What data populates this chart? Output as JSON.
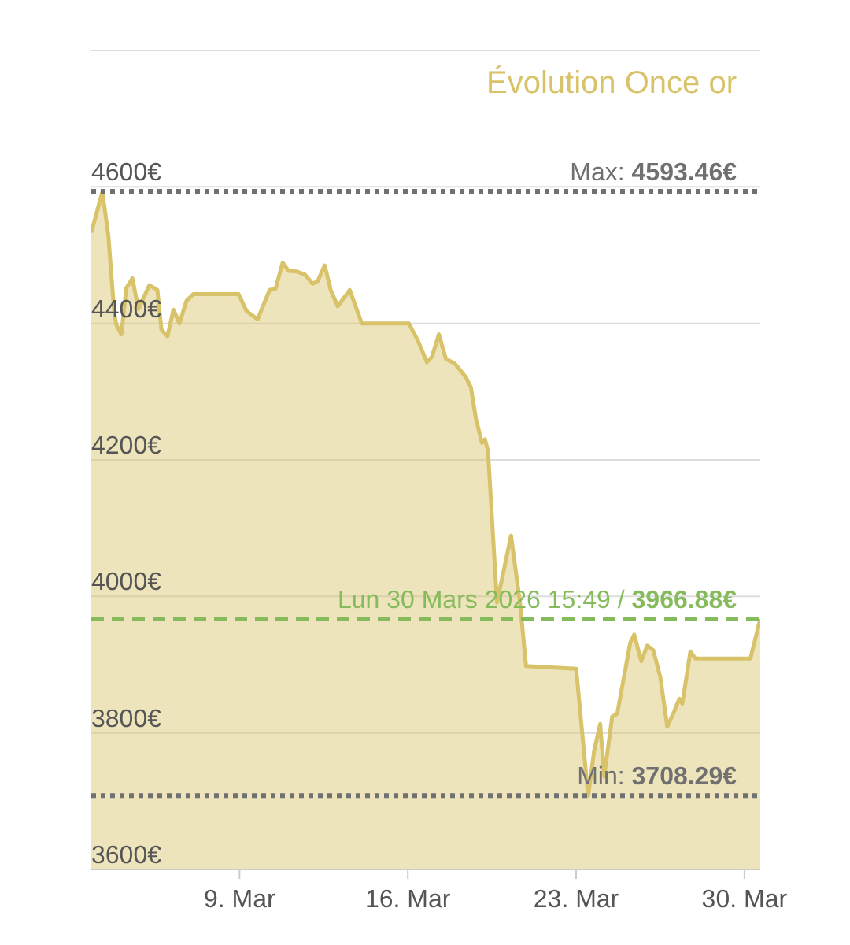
{
  "chart_data": {
    "type": "area",
    "title": "Évolution Once or",
    "color": "#d8c36a",
    "marker": "none",
    "line_style": "solid",
    "grid": "y",
    "x": [
      "2026-03-02T20:00",
      "2026-03-03T01:00",
      "2026-03-03T07:00",
      "2026-03-03T13:00",
      "2026-03-03T19:00",
      "2026-03-03T21:00",
      "2026-03-04T02:00",
      "2026-03-04T07:00",
      "2026-03-04T13:00",
      "2026-03-04T19:00",
      "2026-03-05T06:00",
      "2026-03-05T14:00",
      "2026-03-05T18:00",
      "2026-03-06T00:00",
      "2026-03-06T06:00",
      "2026-03-06T12:00",
      "2026-03-06T19:00",
      "2026-03-07T02:00",
      "2026-03-08T23:00",
      "2026-03-09T07:00",
      "2026-03-09T18:00",
      "2026-03-10T06:00",
      "2026-03-10T12:00",
      "2026-03-10T19:00",
      "2026-03-11T01:00",
      "2026-03-11T09:00",
      "2026-03-11T17:00",
      "2026-03-12T01:00",
      "2026-03-12T06:00",
      "2026-03-12T13:00",
      "2026-03-12T19:00",
      "2026-03-13T02:00",
      "2026-03-13T14:00",
      "2026-03-14T02:00",
      "2026-03-16T01:00",
      "2026-03-16T10:00",
      "2026-03-16T19:00",
      "2026-03-17T00:00",
      "2026-03-17T07:00",
      "2026-03-17T14:00",
      "2026-03-17T23:00",
      "2026-03-18T10:00",
      "2026-03-18T15:00",
      "2026-03-18T20:00",
      "2026-03-19T02:00",
      "2026-03-19T05:00",
      "2026-03-19T08:00",
      "2026-03-19T17:00",
      "2026-03-20T07:00",
      "2026-03-20T16:00",
      "2026-03-20T22:00",
      "2026-03-23T00:00",
      "2026-03-23T12:00",
      "2026-03-23T18:00",
      "2026-03-24T00:00",
      "2026-03-24T04:00",
      "2026-03-24T12:00",
      "2026-03-24T17:00",
      "2026-03-25T06:00",
      "2026-03-25T10:00",
      "2026-03-25T17:00",
      "2026-03-25T23:00",
      "2026-03-26T05:00",
      "2026-03-26T12:00",
      "2026-03-26T19:00",
      "2026-03-27T02:00",
      "2026-03-27T07:00",
      "2026-03-27T10:00",
      "2026-03-27T15:00",
      "2026-03-27T18:00",
      "2026-03-27T23:00",
      "2026-03-30T06:00",
      "2026-03-30T15:49"
    ],
    "values": [
      4533,
      4560,
      4593,
      4529,
      4414,
      4398,
      4384,
      4452,
      4466,
      4421,
      4456,
      4449,
      4391,
      4381,
      4420,
      4400,
      4433,
      4443,
      4443,
      4418,
      4406,
      4449,
      4451,
      4489,
      4477,
      4476,
      4472,
      4458,
      4462,
      4485,
      4449,
      4425,
      4449,
      4400,
      4400,
      4375,
      4343,
      4351,
      4384,
      4348,
      4341,
      4321,
      4306,
      4260,
      4225,
      4230,
      4213,
      3991,
      4089,
      3990,
      3898,
      3894,
      3708,
      3774,
      3813,
      3736,
      3824,
      3828,
      3932,
      3944,
      3905,
      3928,
      3921,
      3882,
      3809,
      3832,
      3850,
      3843,
      3890,
      3919,
      3909,
      3909,
      3967
    ],
    "xlim": [
      "2026-03-02T20:00",
      "2026-03-30T15:49"
    ],
    "xticks": [
      {
        "value": "2026-03-09",
        "label": "9. Mar"
      },
      {
        "value": "2026-03-16",
        "label": "16. Mar"
      },
      {
        "value": "2026-03-23",
        "label": "23. Mar"
      },
      {
        "value": "2026-03-30",
        "label": "30. Mar"
      }
    ],
    "ylim": [
      3600,
      4800
    ],
    "yticks": [
      {
        "value": 3600,
        "label": "3600€"
      },
      {
        "value": 3800,
        "label": "3800€"
      },
      {
        "value": 4000,
        "label": "4000€"
      },
      {
        "value": 4200,
        "label": "4200€"
      },
      {
        "value": 4400,
        "label": "4400€"
      },
      {
        "value": 4600,
        "label": "4600€"
      },
      {
        "value": 4800,
        "label": null
      }
    ],
    "ref_lines": [
      {
        "axis": "y",
        "value": 4593.46,
        "label": "Max: 4593.46€",
        "color": "#707070",
        "line_style": "dotted"
      },
      {
        "axis": "y",
        "value": 3708.29,
        "label": "Min: 3708.29€",
        "color": "#707070",
        "line_style": "dotted"
      },
      {
        "axis": "y",
        "value": 3966.88,
        "label": "Lun 30 Mars 2026 15:49 / 3966.88€",
        "color": "#86bb5c",
        "line_style": "dashed"
      }
    ]
  }
}
